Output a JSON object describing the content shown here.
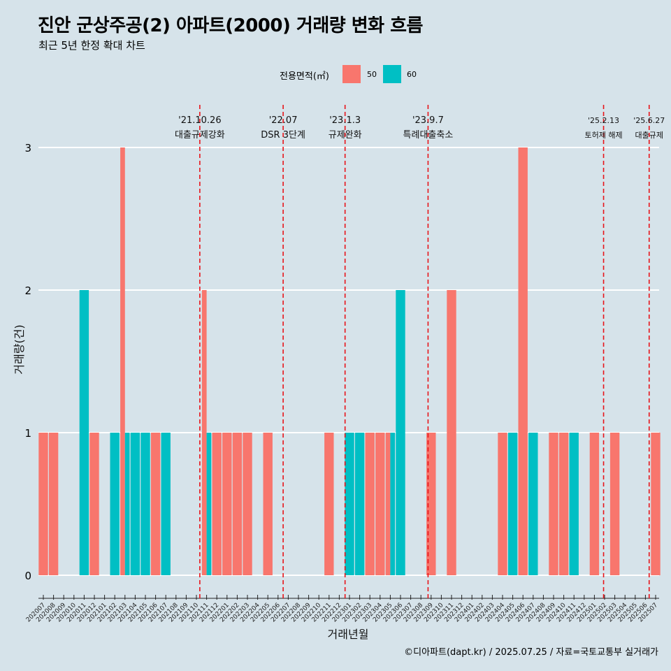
{
  "title": "진안 군상주공(2) 아파트(2000) 거래량 변화 흐름",
  "subtitle": "최근 5년 한정 확대 차트",
  "caption": "©디아파트(dapt.kr) / 2025.07.25 / 자료=국토교통부 실거래가",
  "colors": {
    "background": "#d6e3ea",
    "series_50": "#f8766d",
    "series_60": "#00bfc4",
    "event_line": "#e8141a",
    "gridline": "#ffffff"
  },
  "chart_data": {
    "type": "bar",
    "xlabel": "거래년월",
    "ylabel": "거래량(건)",
    "legend": {
      "title": "전용면적(㎡)",
      "placement": "top"
    },
    "ylim": [
      0,
      3
    ],
    "yticks": [
      0,
      1,
      2,
      3
    ],
    "categories": [
      "202007",
      "202008",
      "202009",
      "202010",
      "202011",
      "202012",
      "202101",
      "202102",
      "202103",
      "202104",
      "202105",
      "202106",
      "202107",
      "202108",
      "202109",
      "202110",
      "202111",
      "202112",
      "202201",
      "202202",
      "202203",
      "202204",
      "202205",
      "202206",
      "202207",
      "202208",
      "202209",
      "202210",
      "202211",
      "202212",
      "202301",
      "202302",
      "202303",
      "202304",
      "202305",
      "202306",
      "202307",
      "202308",
      "202309",
      "202310",
      "202311",
      "202312",
      "202401",
      "202402",
      "202403",
      "202404",
      "202405",
      "202406",
      "202407",
      "202408",
      "202409",
      "202410",
      "202411",
      "202412",
      "202501",
      "202502",
      "202503",
      "202504",
      "202505",
      "202506",
      "202507"
    ],
    "series": [
      {
        "name": "50",
        "values": [
          1,
          1,
          0,
          0,
          0,
          1,
          0,
          0,
          3,
          0,
          0,
          1,
          0,
          0,
          0,
          0,
          2,
          1,
          1,
          1,
          1,
          0,
          1,
          0,
          0,
          0,
          0,
          0,
          1,
          0,
          0,
          0,
          1,
          1,
          1,
          0,
          0,
          0,
          1,
          0,
          2,
          0,
          0,
          0,
          0,
          1,
          0,
          3,
          0,
          0,
          1,
          1,
          0,
          0,
          1,
          0,
          1,
          0,
          0,
          0,
          1
        ]
      },
      {
        "name": "60",
        "values": [
          0,
          0,
          0,
          0,
          2,
          0,
          0,
          1,
          1,
          1,
          1,
          0,
          1,
          0,
          0,
          0,
          1,
          0,
          0,
          0,
          0,
          0,
          0,
          0,
          0,
          0,
          0,
          0,
          0,
          0,
          1,
          1,
          0,
          0,
          1,
          2,
          0,
          0,
          0,
          0,
          0,
          0,
          0,
          0,
          0,
          0,
          1,
          0,
          1,
          0,
          0,
          0,
          1,
          0,
          0,
          0,
          0,
          0,
          0,
          0,
          0
        ]
      }
    ],
    "events": [
      {
        "date": "2021-10-26",
        "label_top": "'21.10.26",
        "label_bottom": "대출규제강화"
      },
      {
        "date": "2022-07",
        "label_top": "'22.07",
        "label_bottom": "DSR 3단계"
      },
      {
        "date": "2023-01-03",
        "label_top": "'23.1.3",
        "label_bottom": "규제완화"
      },
      {
        "date": "2023-09-07",
        "label_top": "'23.9.7",
        "label_bottom": "특례대출축소"
      },
      {
        "date": "2025-02-13",
        "label_top": "'25.2.13",
        "label_bottom": "토허제 해제"
      },
      {
        "date": "2025-06-27",
        "label_top": "'25.6.27",
        "label_bottom": "대출규제"
      }
    ]
  }
}
